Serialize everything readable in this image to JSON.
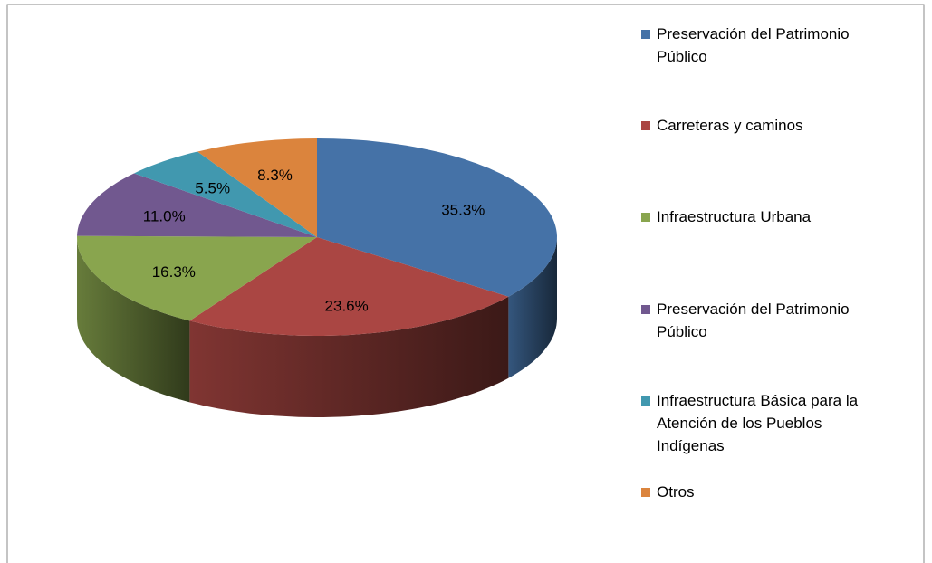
{
  "chart_data": {
    "type": "pie",
    "categories": [
      "Preservación del Patrimonio Público",
      "Carreteras y caminos",
      "Infraestructura Urbana",
      "Preservación del Patrimonio Público",
      "Infraestructura Básica para la Atención de los Pueblos Indígenas",
      "Otros"
    ],
    "values": [
      35.3,
      23.6,
      16.3,
      11.0,
      5.5,
      8.3
    ],
    "value_labels": [
      "35.3%",
      "23.6%",
      "16.3%",
      "11.0%",
      "5.5%",
      "8.3%"
    ],
    "colors": [
      "#4572a7",
      "#aa4643",
      "#89a54e",
      "#71588f",
      "#4198af",
      "#db843d"
    ],
    "legend": "right"
  }
}
